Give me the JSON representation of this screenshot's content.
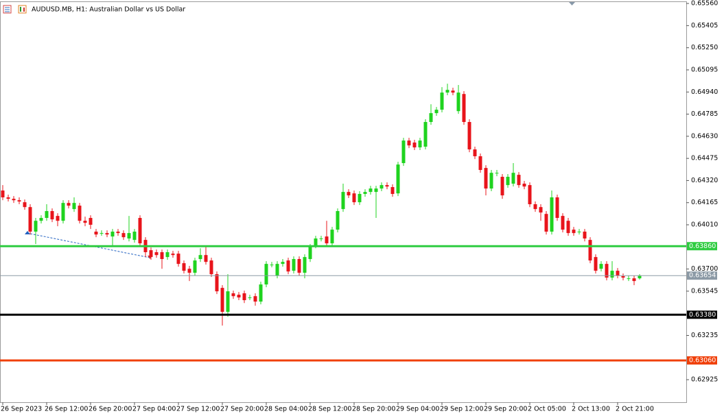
{
  "chart_data": {
    "type": "candlestick",
    "title": "AUDUSD.MB, H1:  Australian Dollar vs US Dollar",
    "categories": [
      "26 Sep 2023",
      null,
      null,
      null,
      null,
      null,
      null,
      null,
      "26 Sep 12:00",
      null,
      null,
      null,
      null,
      null,
      null,
      null,
      "26 Sep 20:00",
      null,
      null,
      null,
      null,
      null,
      null,
      null,
      "27 Sep 04:00",
      null,
      null,
      null,
      null,
      null,
      null,
      null,
      "27 Sep 12:00",
      null,
      null,
      null,
      null,
      null,
      null,
      null,
      "27 Sep 20:00",
      null,
      null,
      null,
      null,
      null,
      null,
      null,
      "28 Sep 04:00",
      null,
      null,
      null,
      null,
      null,
      null,
      null,
      "28 Sep 12:00",
      null,
      null,
      null,
      null,
      null,
      null,
      null,
      "28 Sep 20:00",
      null,
      null,
      null,
      null,
      null,
      null,
      null,
      "29 Sep 04:00",
      null,
      null,
      null,
      null,
      null,
      null,
      null,
      "29 Sep 12:00",
      null,
      null,
      null,
      null,
      null,
      null,
      null,
      "29 Sep 20:00",
      null,
      null,
      null,
      null,
      null,
      null,
      null,
      "2 Oct 05:00",
      null,
      null,
      null,
      null,
      null,
      null,
      null,
      "2 Oct 13:00",
      null,
      null,
      null,
      null,
      null,
      null,
      null,
      "2 Oct 21:00",
      null,
      null,
      null,
      null
    ],
    "open": [
      0.6425,
      0.64202,
      0.64192,
      0.64182,
      0.64168,
      0.64134,
      0.63962,
      0.64038,
      0.64058,
      0.64106,
      0.64072,
      0.64038,
      0.64163,
      0.6412,
      0.64144,
      0.64038,
      0.64058,
      0.63962,
      0.63952,
      0.63952,
      0.63928,
      0.63962,
      0.63952,
      0.63914,
      0.63904,
      0.64058,
      0.63904,
      0.63832,
      0.63818,
      0.63818,
      0.63784,
      0.63808,
      0.63808,
      0.63741,
      0.63702,
      0.63674,
      0.6377,
      0.63798,
      0.6376,
      0.63664,
      0.63568,
      0.634,
      0.6353,
      0.6352,
      0.6353,
      0.63501,
      0.6351,
      0.63472,
      0.63592,
      0.63731,
      0.63654,
      0.63736,
      0.6376,
      0.63688,
      0.6377,
      0.63674,
      0.6377,
      0.63866,
      0.63914,
      0.63928,
      0.6388,
      0.63976,
      0.6412,
      0.6424,
      0.6423,
      0.64168,
      0.64226,
      0.6424,
      0.6424,
      0.64264,
      0.64288,
      0.64274,
      0.6423,
      0.64442,
      0.646,
      0.64586,
      0.64552,
      0.64557,
      0.6473,
      0.64792,
      0.64816,
      0.64936,
      0.6495,
      0.64806,
      0.64926,
      0.6473,
      0.64538,
      0.6449,
      0.64408,
      0.64264,
      0.6437,
      0.64346,
      0.64288,
      0.64298,
      0.6436,
      0.64298,
      0.64288,
      0.64154,
      0.64134,
      0.64086,
      0.63962,
      0.64202,
      0.64072,
      0.64038,
      0.63976,
      0.63962,
      0.63962,
      0.63904,
      0.63784,
      0.63702,
      0.63736,
      0.6364,
      0.63688,
      0.6365,
      0.63635,
      0.63635,
      0.63635
    ],
    "high": [
      0.64288,
      0.64221,
      0.64211,
      0.64202,
      0.64187,
      0.64154,
      0.64058,
      0.64077,
      0.64154,
      0.64125,
      0.64091,
      0.64182,
      0.64182,
      0.64202,
      0.64163,
      0.64067,
      0.64077,
      0.63981,
      0.63971,
      0.63971,
      0.63981,
      0.63981,
      0.63971,
      0.64072,
      0.63981,
      0.64077,
      0.63923,
      0.63851,
      0.63837,
      0.63837,
      0.63837,
      0.63827,
      0.63827,
      0.6376,
      0.63722,
      0.63779,
      0.63846,
      0.63856,
      0.63779,
      0.63683,
      0.63587,
      0.63664,
      0.63549,
      0.63539,
      0.63549,
      0.6352,
      0.6353,
      0.63611,
      0.63755,
      0.6375,
      0.63755,
      0.6377,
      0.63779,
      0.63789,
      0.63789,
      0.63803,
      0.63875,
      0.63933,
      0.63933,
      0.64038,
      0.63995,
      0.64125,
      0.64298,
      0.64259,
      0.6425,
      0.64245,
      0.64259,
      0.64283,
      0.64283,
      0.64307,
      0.64307,
      0.64293,
      0.64451,
      0.64619,
      0.64619,
      0.64605,
      0.64619,
      0.64749,
      0.64854,
      0.64835,
      0.64974,
      0.64998,
      0.6497,
      0.64989,
      0.64946,
      0.64749,
      0.64557,
      0.64509,
      0.64427,
      0.64394,
      0.64394,
      0.64365,
      0.64365,
      0.64442,
      0.64379,
      0.64317,
      0.64307,
      0.64173,
      0.64154,
      0.64106,
      0.6425,
      0.64221,
      0.64091,
      0.64058,
      0.63995,
      0.63981,
      0.63981,
      0.63923,
      0.63803,
      0.63755,
      0.63755,
      0.63755,
      0.63707,
      0.63669,
      0.63654,
      0.63654,
      0.63664
    ],
    "low": [
      0.64182,
      0.64173,
      0.64163,
      0.64154,
      0.64115,
      0.63942,
      0.63875,
      0.64019,
      0.64038,
      0.64029,
      0.64,
      0.64019,
      0.64125,
      0.64101,
      0.64019,
      0.64,
      0.63981,
      0.63923,
      0.63933,
      0.63923,
      0.63856,
      0.63933,
      0.63904,
      0.63894,
      0.63885,
      0.63861,
      0.63784,
      0.63765,
      0.63779,
      0.63702,
      0.63765,
      0.63779,
      0.63717,
      0.63669,
      0.63616,
      0.63654,
      0.6375,
      0.63731,
      0.63645,
      0.63525,
      0.63304,
      0.63366,
      0.63491,
      0.63482,
      0.63462,
      0.63482,
      0.63443,
      0.63453,
      0.63573,
      0.63712,
      0.63635,
      0.63717,
      0.63664,
      0.63669,
      0.63654,
      0.63635,
      0.6375,
      0.63846,
      0.63894,
      0.63861,
      0.63861,
      0.63957,
      0.64101,
      0.64197,
      0.64149,
      0.64149,
      0.64206,
      0.64221,
      0.64058,
      0.64245,
      0.64259,
      0.64206,
      0.64211,
      0.64422,
      0.64547,
      0.64533,
      0.64533,
      0.64538,
      0.6471,
      0.64773,
      0.64797,
      0.64917,
      0.64917,
      0.64787,
      0.6471,
      0.64518,
      0.6447,
      0.64374,
      0.64216,
      0.64245,
      0.6435,
      0.64192,
      0.64269,
      0.64278,
      0.64269,
      0.64259,
      0.64134,
      0.64101,
      0.64038,
      0.63942,
      0.63942,
      0.64038,
      0.63957,
      0.63933,
      0.63933,
      0.63942,
      0.63894,
      0.63741,
      0.63669,
      0.63683,
      0.63621,
      0.63621,
      0.63635,
      0.63621,
      0.63616,
      0.63587,
      0.63626
    ],
    "close": [
      0.64202,
      0.64192,
      0.64182,
      0.64173,
      0.64134,
      0.63962,
      0.64038,
      0.64058,
      0.64106,
      0.64048,
      0.64038,
      0.64163,
      0.64144,
      0.64163,
      0.64038,
      0.64024,
      0.6401,
      0.63942,
      0.63952,
      0.63942,
      0.63962,
      0.63952,
      0.63923,
      0.63952,
      0.63962,
      0.6388,
      0.63818,
      0.63784,
      0.63798,
      0.6377,
      0.63818,
      0.63798,
      0.63736,
      0.63688,
      0.63674,
      0.6376,
      0.63798,
      0.6375,
      0.63664,
      0.63544,
      0.634,
      0.63544,
      0.6351,
      0.63501,
      0.63482,
      0.63501,
      0.63472,
      0.63592,
      0.63736,
      0.63731,
      0.63736,
      0.6375,
      0.63683,
      0.6377,
      0.63674,
      0.63784,
      0.63856,
      0.63914,
      0.63914,
      0.6388,
      0.63976,
      0.64106,
      0.6424,
      0.64216,
      0.64168,
      0.64226,
      0.6424,
      0.64264,
      0.64264,
      0.64288,
      0.64278,
      0.64226,
      0.64432,
      0.646,
      0.64566,
      0.64552,
      0.646,
      0.6473,
      0.64792,
      0.64816,
      0.64936,
      0.64955,
      0.64936,
      0.64936,
      0.6473,
      0.64538,
      0.6449,
      0.64394,
      0.64264,
      0.64374,
      0.64374,
      0.64216,
      0.64346,
      0.64374,
      0.64288,
      0.64278,
      0.64154,
      0.6412,
      0.64096,
      0.63962,
      0.64202,
      0.64058,
      0.63976,
      0.63952,
      0.63952,
      0.63962,
      0.63914,
      0.6376,
      0.63688,
      0.63736,
      0.6364,
      0.63688,
      0.63654,
      0.6364,
      0.63635,
      0.63616,
      0.63654
    ],
    "up_color": "#1fd31f",
    "down_color": "#e8141b",
    "ylim": [
      0.62767,
      0.6557
    ],
    "yticks": [
      {
        "value": 0.6556,
        "label": "0.65560"
      },
      0.65405,
      {
        "value": 0.6525,
        "label": "0.65250"
      },
      0.65095,
      {
        "value": 0.6494,
        "label": "0.64940"
      },
      0.64785,
      {
        "value": 0.6463,
        "label": "0.64630"
      },
      0.64475,
      {
        "value": 0.6432,
        "label": "0.64320"
      },
      0.64165,
      {
        "value": 0.6401,
        "label": "0.64010"
      },
      {
        "value": 0.637,
        "label": "0.63700"
      },
      0.63545,
      0.63235,
      0.62925
    ],
    "levels": [
      {
        "value": 0.6386,
        "label": "0.63860",
        "color": "#2ecc40"
      },
      {
        "value": 0.6338,
        "label": "0.63380",
        "color": "#000000"
      },
      {
        "value": 0.6306,
        "label": "0.63060",
        "color": "#f0400a"
      }
    ],
    "current_price": {
      "value": 0.63654,
      "label": "0.63654",
      "color": "#8c9aa6"
    }
  }
}
